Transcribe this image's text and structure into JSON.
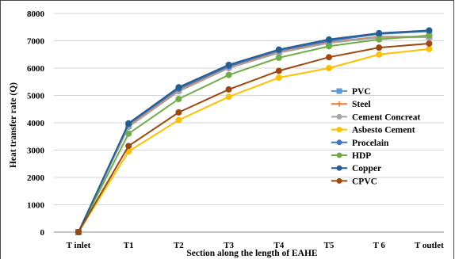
{
  "chart_data": {
    "type": "line",
    "xlabel": "Section along the length of EAHE",
    "ylabel": "Heat transfer rate (Q)",
    "categories": [
      "T inlet",
      "T1",
      "T2",
      "T3",
      "T4",
      "T5",
      "T 6",
      "T outlet"
    ],
    "ylim": [
      0,
      8000
    ],
    "yticks": [
      0,
      1000,
      2000,
      3000,
      4000,
      5000,
      6000,
      7000,
      8000
    ],
    "grid": true,
    "legend_position": "right",
    "series": [
      {
        "name": "PVC",
        "color": "#5b9bd5",
        "marker": "square",
        "values": [
          0,
          3900,
          5200,
          6050,
          6600,
          6950,
          7150,
          7150
        ]
      },
      {
        "name": "Steel",
        "color": "#ed7d31",
        "marker": "plus",
        "values": [
          0,
          3880,
          5180,
          6020,
          6580,
          6940,
          7140,
          7150
        ]
      },
      {
        "name": "Cement Concreat",
        "color": "#a5a5a5",
        "marker": "circle",
        "values": [
          0,
          3850,
          5150,
          6000,
          6560,
          6920,
          7120,
          7130
        ]
      },
      {
        "name": "Asbesto Cement",
        "color": "#ffc000",
        "marker": "circle",
        "values": [
          0,
          2950,
          4100,
          4950,
          5650,
          6000,
          6500,
          6700
        ]
      },
      {
        "name": "Procelain",
        "color": "#4472c4",
        "marker": "circle",
        "values": [
          0,
          3950,
          5250,
          6070,
          6650,
          7000,
          7250,
          7350
        ]
      },
      {
        "name": "HDP",
        "color": "#70ad47",
        "marker": "circle",
        "values": [
          0,
          3600,
          4870,
          5750,
          6380,
          6800,
          7050,
          7200
        ]
      },
      {
        "name": "Copper",
        "color": "#255e91",
        "marker": "circle",
        "values": [
          0,
          3980,
          5300,
          6120,
          6680,
          7050,
          7280,
          7380
        ]
      },
      {
        "name": "CPVC",
        "color": "#9e480e",
        "marker": "circle",
        "values": [
          0,
          3150,
          4380,
          5220,
          5900,
          6400,
          6750,
          6900
        ]
      }
    ]
  }
}
